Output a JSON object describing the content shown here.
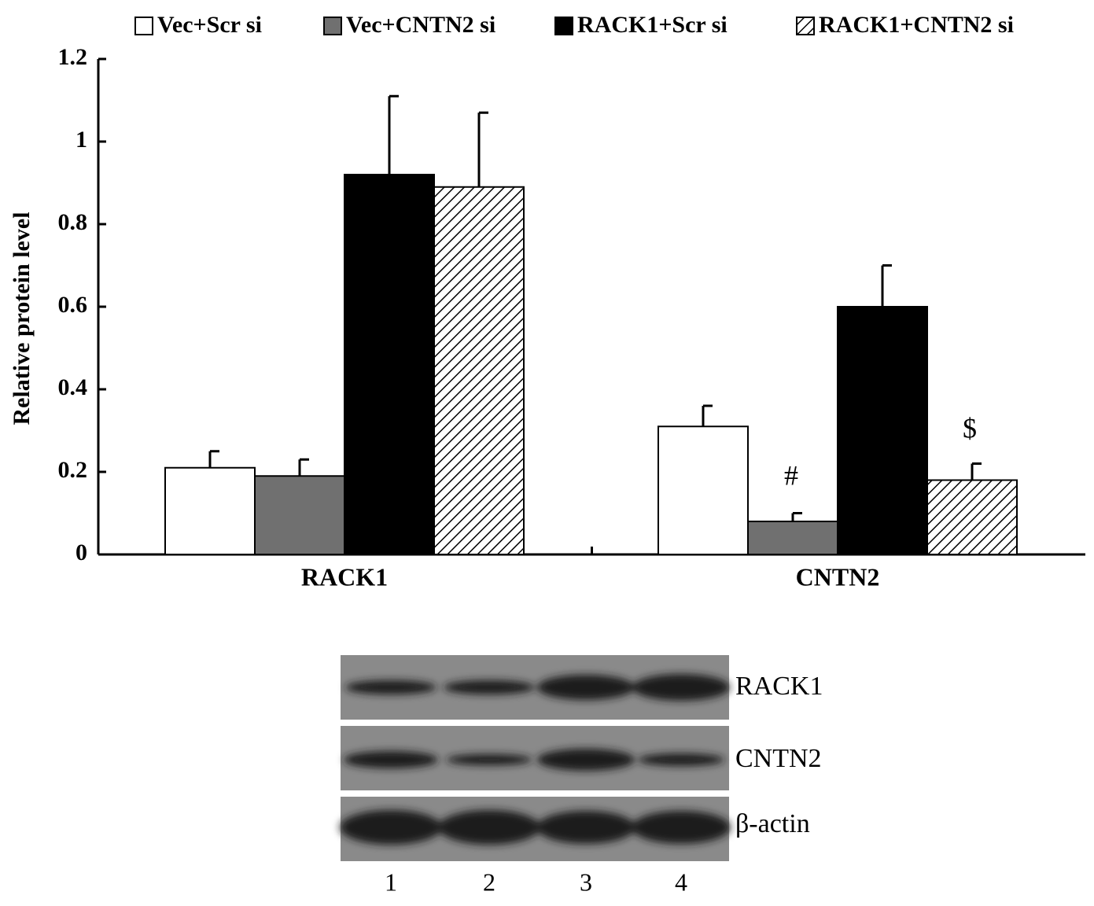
{
  "chart_data": {
    "type": "bar",
    "y_label": "Relative protein level",
    "categories": [
      "RACK1",
      "CNTN2"
    ],
    "series": [
      {
        "name": "Vec+Scr si",
        "color": "#ffffff",
        "values": [
          0.21,
          0.31
        ],
        "errors": [
          0.04,
          0.05
        ]
      },
      {
        "name": "Vec+CNTN2 si",
        "color": "#707070",
        "values": [
          0.19,
          0.08
        ],
        "errors": [
          0.04,
          0.02
        ]
      },
      {
        "name": "RACK1+Scr si",
        "color": "#000000",
        "values": [
          0.92,
          0.6
        ],
        "errors": [
          0.19,
          0.1
        ]
      },
      {
        "name": "RACK1+CNTN2 si",
        "color": "#ffffff",
        "hatch": true,
        "values": [
          0.89,
          0.18
        ],
        "errors": [
          0.18,
          0.04
        ]
      }
    ],
    "annotations": [
      "#",
      "$"
    ],
    "ylim": [
      0,
      1.2
    ],
    "yticks": [
      0,
      0.2,
      0.4,
      0.6,
      0.8,
      1,
      1.2
    ],
    "legend": "top"
  },
  "blot": {
    "rows": [
      "RACK1",
      "CNTN2",
      "β-actin"
    ],
    "lanes": [
      "1",
      "2",
      "3",
      "4"
    ]
  }
}
